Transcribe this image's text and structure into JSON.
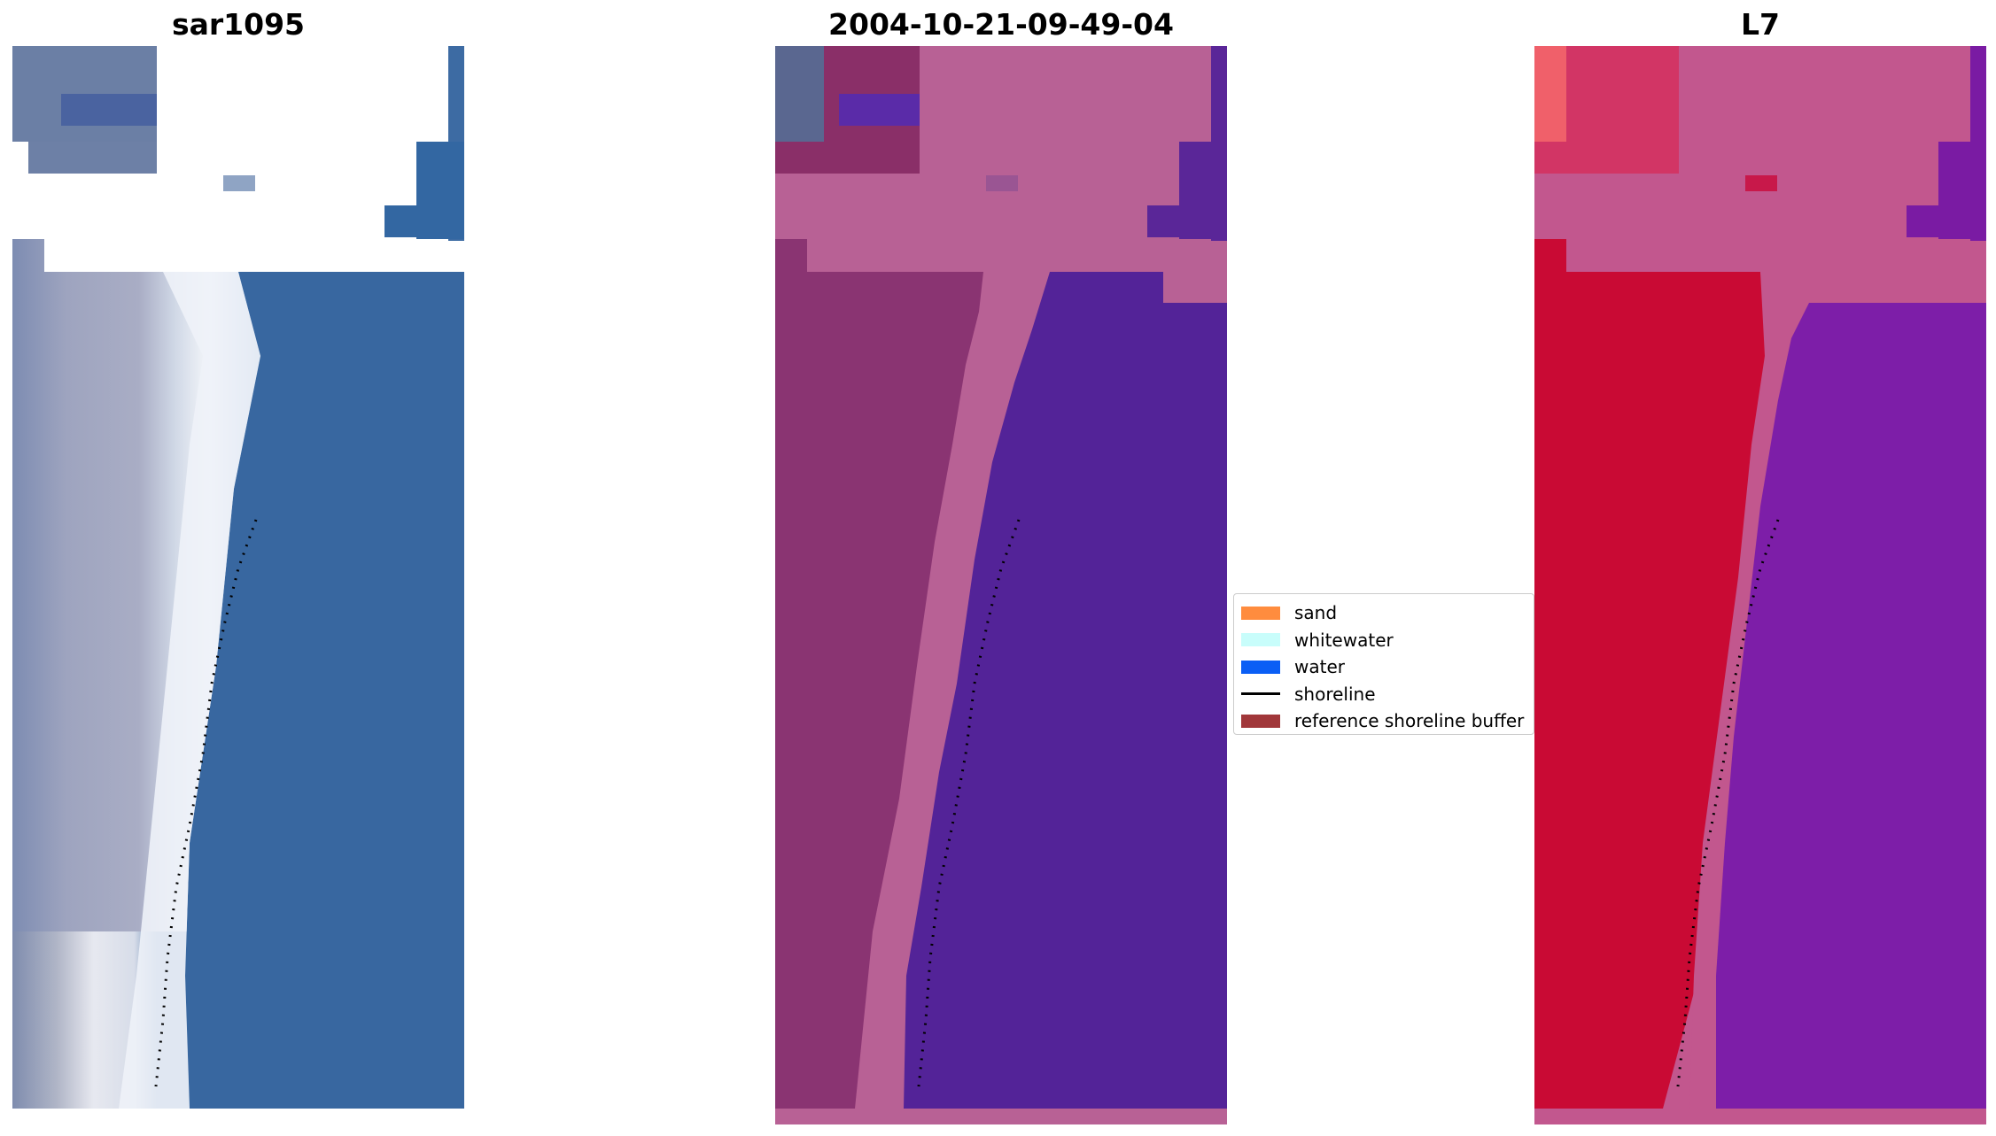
{
  "panels": [
    {
      "title": "sar1095"
    },
    {
      "title": "2004-10-21-09-49-04"
    },
    {
      "title": "L7"
    }
  ],
  "legend": {
    "items": [
      {
        "label": "sand",
        "color": "#ff8c3e"
      },
      {
        "label": "whitewater",
        "color": "#c8fdfb"
      },
      {
        "label": "water",
        "color": "#0a5ef5"
      },
      {
        "label": "shoreline",
        "color": "#000000"
      },
      {
        "label": "reference shoreline buffer",
        "color": "#a1373a"
      }
    ]
  },
  "colors": {
    "rgb_water": "#3566a0",
    "rgb_beach": "#9ba5c0",
    "rgb_surf": "#f2f4f8",
    "class_overlay_land": "#b86195",
    "class_water": "#532398",
    "index_land": "#c8002e",
    "index_water": "#7d1ea8"
  }
}
